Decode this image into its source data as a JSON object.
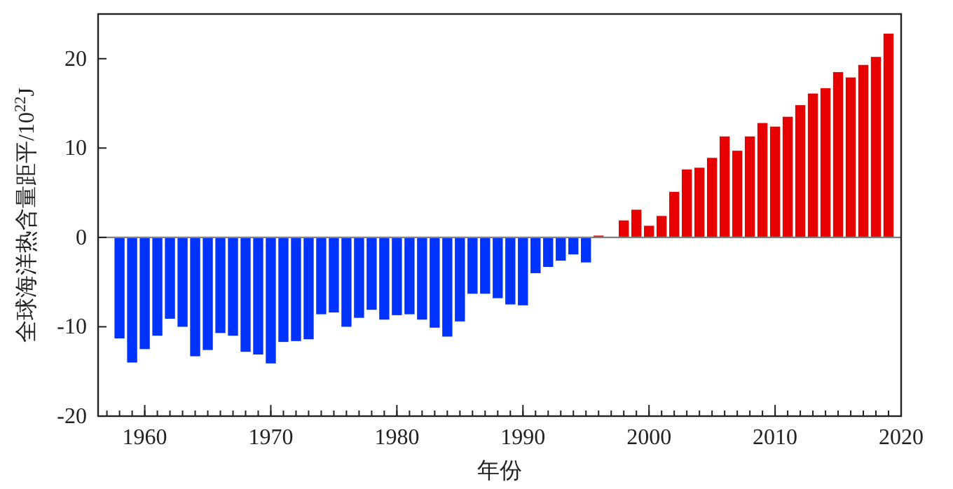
{
  "chart_data": {
    "type": "bar",
    "xlabel": "年份",
    "ylabel": "全球海洋热含量距平/10$^{22}$J",
    "x": [
      1958,
      1959,
      1960,
      1961,
      1962,
      1963,
      1964,
      1965,
      1966,
      1967,
      1968,
      1969,
      1970,
      1971,
      1972,
      1973,
      1974,
      1975,
      1976,
      1977,
      1978,
      1979,
      1980,
      1981,
      1982,
      1983,
      1984,
      1985,
      1986,
      1987,
      1988,
      1989,
      1990,
      1991,
      1992,
      1993,
      1994,
      1995,
      1996,
      1997,
      1998,
      1999,
      2000,
      2001,
      2002,
      2003,
      2004,
      2005,
      2006,
      2007,
      2008,
      2009,
      2010,
      2011,
      2012,
      2013,
      2014,
      2015,
      2016,
      2017,
      2018,
      2019
    ],
    "values": [
      -11.3,
      -14,
      -12.5,
      -11,
      -9.1,
      -10,
      -13.3,
      -12.6,
      -10.7,
      -11,
      -12.8,
      -13.1,
      -14.1,
      -11.7,
      -11.6,
      -11.4,
      -8.6,
      -8.4,
      -10,
      -9,
      -8.1,
      -9.2,
      -8.7,
      -8.6,
      -9.2,
      -10.1,
      -11.1,
      -9.4,
      -6.3,
      -6.3,
      -6.8,
      -7.5,
      -7.6,
      -4,
      -3.3,
      -2.6,
      -1.9,
      -2.8,
      0.2,
      0,
      1.9,
      3.1,
      1.3,
      2.4,
      5.1,
      7.6,
      7.8,
      8.9,
      11.3,
      9.7,
      11.3,
      12.8,
      12.4,
      13.5,
      14.8,
      16.1,
      16.7,
      18.5,
      17.9,
      19.3,
      20.2,
      22.8
    ],
    "colors": [
      "#0033ff",
      "#0033ff",
      "#0033ff",
      "#0033ff",
      "#0033ff",
      "#0033ff",
      "#0033ff",
      "#0033ff",
      "#0033ff",
      "#0033ff",
      "#0033ff",
      "#0033ff",
      "#0033ff",
      "#0033ff",
      "#0033ff",
      "#0033ff",
      "#0033ff",
      "#0033ff",
      "#0033ff",
      "#0033ff",
      "#0033ff",
      "#0033ff",
      "#0033ff",
      "#0033ff",
      "#0033ff",
      "#0033ff",
      "#0033ff",
      "#0033ff",
      "#0033ff",
      "#0033ff",
      "#0033ff",
      "#0033ff",
      "#0033ff",
      "#0033ff",
      "#0033ff",
      "#0033ff",
      "#0033ff",
      "#0033ff",
      "#e60000",
      "#e60000",
      "#e60000",
      "#e60000",
      "#e60000",
      "#e60000",
      "#e60000",
      "#e60000",
      "#e60000",
      "#e60000",
      "#e60000",
      "#e60000",
      "#e60000",
      "#e60000",
      "#e60000",
      "#e60000",
      "#e60000",
      "#e60000",
      "#e60000",
      "#e60000",
      "#e60000",
      "#e60000",
      "#e60000",
      "#e60000"
    ],
    "xlim": [
      1956.3,
      2020
    ],
    "xticks": [
      1960,
      1970,
      1980,
      1990,
      2000,
      2010,
      2020
    ],
    "ylim": [
      -20,
      25
    ],
    "yticks": [
      -20,
      -10,
      0,
      10,
      20
    ],
    "ref_lines": [
      {
        "axis": "y",
        "value": 0,
        "color": "#808080"
      }
    ]
  }
}
